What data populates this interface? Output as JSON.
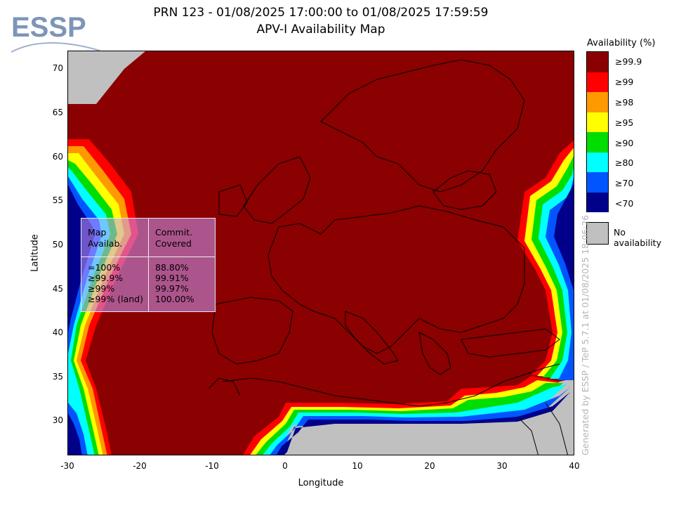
{
  "header": {
    "title_line1": "PRN 123 - 01/08/2025 17:00:00 to 01/08/2025 17:59:59",
    "title_line2": "APV-I Availability Map"
  },
  "logo": {
    "text": "ESSP",
    "color": "#7d95b7"
  },
  "axes": {
    "xlabel": "Longitude",
    "ylabel": "Latitude",
    "xlim": [
      -30,
      40
    ],
    "ylim": [
      26,
      72
    ],
    "xticks": [
      "-30",
      "-20",
      "-10",
      "0",
      "10",
      "20",
      "30",
      "40"
    ],
    "yticks": [
      "70",
      "65",
      "60",
      "55",
      "50",
      "45",
      "40",
      "35",
      "30"
    ]
  },
  "stats_box": {
    "col1_header": [
      "Map",
      "Availab."
    ],
    "col2_header": [
      "Commit.",
      "Covered"
    ],
    "rows": [
      {
        "label": "=100%",
        "value": "88.80%"
      },
      {
        "label": "≥99.9%",
        "value": "99.91%"
      },
      {
        "label": "≥99%",
        "value": "99.97%"
      },
      {
        "label": "≥99% (land)",
        "value": "100.00%"
      }
    ]
  },
  "legend": {
    "title": "Availability (%)",
    "items": [
      {
        "label": "≥99.9",
        "color": "#8b0000"
      },
      {
        "label": "≥99",
        "color": "#ff0000"
      },
      {
        "label": "≥98",
        "color": "#ff9900"
      },
      {
        "label": "≥95",
        "color": "#ffff00"
      },
      {
        "label": "≥90",
        "color": "#00dd00"
      },
      {
        "label": "≥80",
        "color": "#00ffff"
      },
      {
        "label": "≥70",
        "color": "#0055ff"
      },
      {
        "label": "<70",
        "color": "#00008b"
      }
    ],
    "no_availability": {
      "label": "No availability",
      "color": "#c0c0c0"
    }
  },
  "credit": "Generated by ESSP / TeP 5.7.1 at 01/08/2025 18:06:26"
}
